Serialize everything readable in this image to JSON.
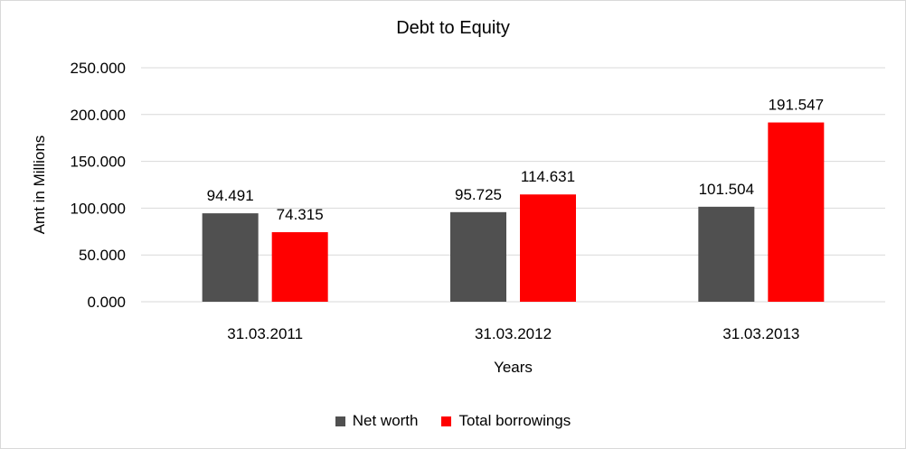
{
  "chart_data": {
    "type": "bar",
    "title": "Debt to Equity",
    "xlabel": "Years",
    "ylabel": "Amt in Millions",
    "categories": [
      "31.03.2011",
      "31.03.2012",
      "31.03.2013"
    ],
    "series": [
      {
        "name": "Net worth",
        "color": "#505050",
        "values": [
          94.491,
          95.725,
          101.504
        ],
        "labels": [
          "94.491",
          "95.725",
          "101.504"
        ]
      },
      {
        "name": "Total borrowings",
        "color": "#ff0000",
        "values": [
          74.315,
          114.631,
          191.547
        ],
        "labels": [
          "74.315",
          "114.631",
          "191.547"
        ]
      }
    ],
    "ylim": [
      0,
      250
    ],
    "yticks": [
      0,
      50,
      100,
      150,
      200,
      250
    ],
    "ytick_labels": [
      "0.000",
      "50.000",
      "100.000",
      "150.000",
      "200.000",
      "250.000"
    ],
    "grid": true,
    "legend_position": "bottom"
  }
}
